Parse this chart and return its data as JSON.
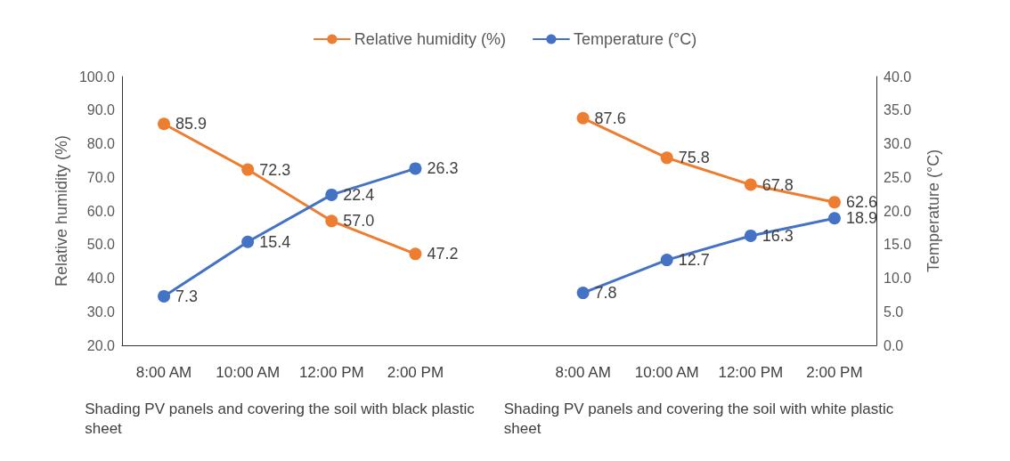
{
  "chart_data": {
    "type": "line",
    "ylabel": "Relative humidity (%)",
    "y2label": "Temperature (°C)",
    "categories": [
      "8:00 AM",
      "10:00 AM",
      "12:00 PM",
      "2:00 PM",
      null,
      "8:00 AM",
      "10:00 AM",
      "12:00 PM",
      "2:00 PM"
    ],
    "series": [
      {
        "name": "Relative humidity (%)",
        "color": "#ed7d31",
        "values": [
          85.9,
          72.3,
          57.0,
          47.2,
          null,
          87.6,
          75.8,
          67.8,
          62.6
        ],
        "value_labels": [
          "85.9",
          "72.3",
          "57.0",
          "47.2",
          null,
          "87.6",
          "75.8",
          "67.8",
          "62.6"
        ]
      },
      {
        "name": "Temperature (°C)",
        "color": "#4472c4",
        "axis": "y2",
        "values": [
          7.3,
          15.4,
          22.4,
          26.3,
          null,
          7.8,
          12.7,
          16.3,
          18.9
        ],
        "value_labels": [
          "7.3",
          "15.4",
          "22.4",
          "26.3",
          null,
          "7.8",
          "12.7",
          "16.3",
          "18.9"
        ]
      }
    ],
    "ylim": [
      20,
      100
    ],
    "yticks": [
      {
        "value": 20,
        "label": "20.0"
      },
      {
        "value": 30,
        "label": "30.0"
      },
      {
        "value": 40,
        "label": "40.0"
      },
      {
        "value": 50,
        "label": "50.0"
      },
      {
        "value": 60,
        "label": "60.0"
      },
      {
        "value": 70,
        "label": "70.0"
      },
      {
        "value": 80,
        "label": "80.0"
      },
      {
        "value": 90,
        "label": "90.0"
      },
      {
        "value": 100,
        "label": "100.0"
      }
    ],
    "y2lim": [
      0,
      40
    ],
    "y2ticks": [
      {
        "value": 0,
        "label": "0.0"
      },
      {
        "value": 5,
        "label": "5.0"
      },
      {
        "value": 10,
        "label": "10.0"
      },
      {
        "value": 15,
        "label": "15.0"
      },
      {
        "value": 20,
        "label": "20.0"
      },
      {
        "value": 25,
        "label": "25.0"
      },
      {
        "value": 30,
        "label": "30.0"
      },
      {
        "value": 35,
        "label": "35.0"
      },
      {
        "value": 40,
        "label": "40.0"
      }
    ],
    "annotations": [
      "Shading PV panels and covering the soil with black plastic sheet",
      "Shading PV panels and covering the soil with white plastic sheet"
    ],
    "legend": "top",
    "grid": false,
    "marker": "circle",
    "line_style": "solid"
  }
}
